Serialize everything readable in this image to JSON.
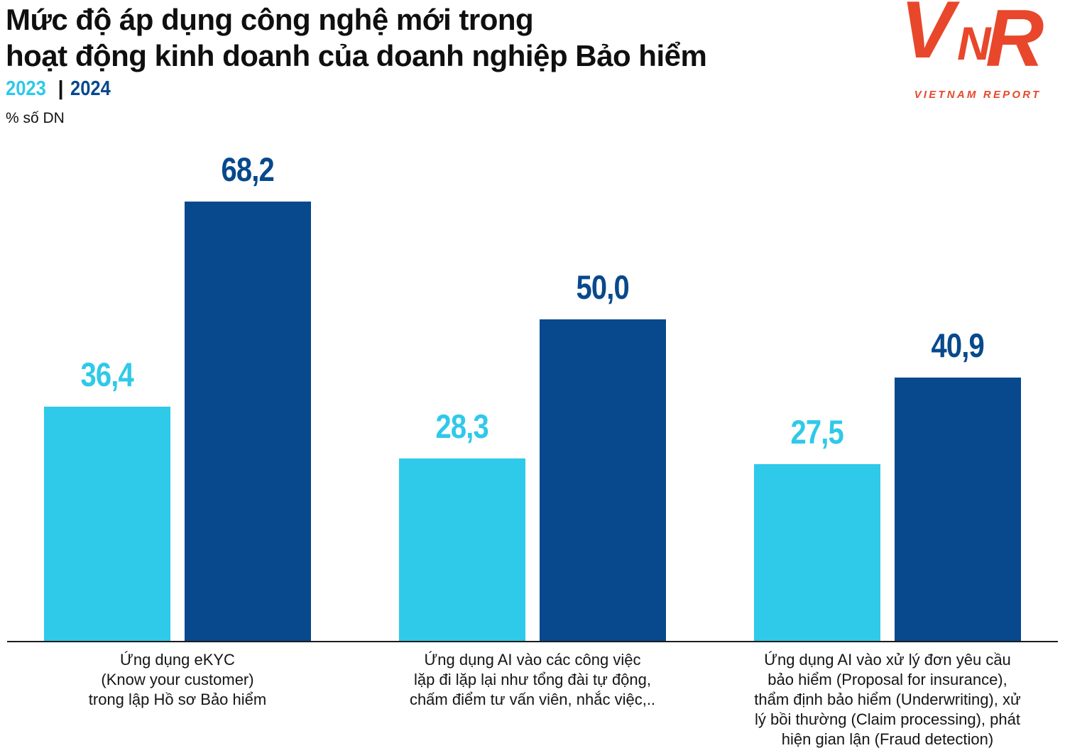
{
  "header": {
    "title_line1": "Mức độ áp dụng công nghệ mới trong",
    "title_line2": "hoạt động kinh doanh của doanh nghiệp Bảo hiểm",
    "legend": {
      "year_2023": "2023",
      "separator": "|",
      "year_2024": "2024"
    },
    "unit_label": "% số DN"
  },
  "logo": {
    "letters": [
      "V",
      "N",
      "R"
    ],
    "caption": "VIETNAM REPORT",
    "color": "#E8472B"
  },
  "chart_data": {
    "type": "bar",
    "title": "Mức độ áp dụng công nghệ mới trong hoạt động kinh doanh của doanh nghiệp Bảo hiểm",
    "ylabel": "% số DN",
    "unit": "% số DN",
    "categories": [
      "Ứng dụng eKYC\n(Know your customer)\ntrong lập Hồ sơ Bảo hiểm",
      "Ứng dụng AI vào các công việc\nlặp đi lặp lại như tổng đài tự động,\nchấm điểm tư vấn viên, nhắc việc,..",
      "Ứng dụng AI vào xử lý đơn yêu cầu\nbảo hiểm (Proposal for insurance),\nthẩm định bảo hiểm (Underwriting), xử\nlý bồi thường (Claim processing), phát\nhiện gian lận (Fraud detection)"
    ],
    "series": [
      {
        "name": "2023",
        "color": "#2FC9E9",
        "values": [
          36.4,
          28.3,
          27.5
        ],
        "display": [
          "36,4",
          "28,3",
          "27,5"
        ]
      },
      {
        "name": "2024",
        "color": "#07498C",
        "values": [
          68.2,
          50.0,
          40.9
        ],
        "display": [
          "68,2",
          "50,0",
          "40,9"
        ]
      }
    ],
    "ylim": [
      0,
      75
    ],
    "grid": false,
    "legend_position": "top-left",
    "value_labels": "above-bars"
  }
}
